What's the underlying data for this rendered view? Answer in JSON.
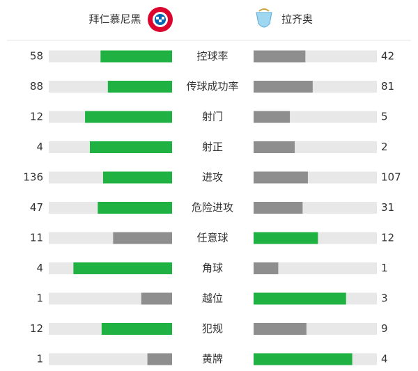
{
  "header": {
    "home": "拜仁慕尼黑",
    "away": "拉齐奥"
  },
  "colors": {
    "higher": "#1fb141",
    "lower": "#8e8e8e",
    "track": "#e8e8e8"
  },
  "stats": [
    {
      "label": "控球率",
      "home": 58,
      "away": 42
    },
    {
      "label": "传球成功率",
      "home": 88,
      "away": 81
    },
    {
      "label": "射门",
      "home": 12,
      "away": 5
    },
    {
      "label": "射正",
      "home": 4,
      "away": 2
    },
    {
      "label": "进攻",
      "home": 136,
      "away": 107
    },
    {
      "label": "危险进攻",
      "home": 47,
      "away": 31
    },
    {
      "label": "任意球",
      "home": 11,
      "away": 12
    },
    {
      "label": "角球",
      "home": 4,
      "away": 1
    },
    {
      "label": "越位",
      "home": 1,
      "away": 3
    },
    {
      "label": "犯规",
      "home": 12,
      "away": 9
    },
    {
      "label": "黄牌",
      "home": 1,
      "away": 4
    }
  ]
}
